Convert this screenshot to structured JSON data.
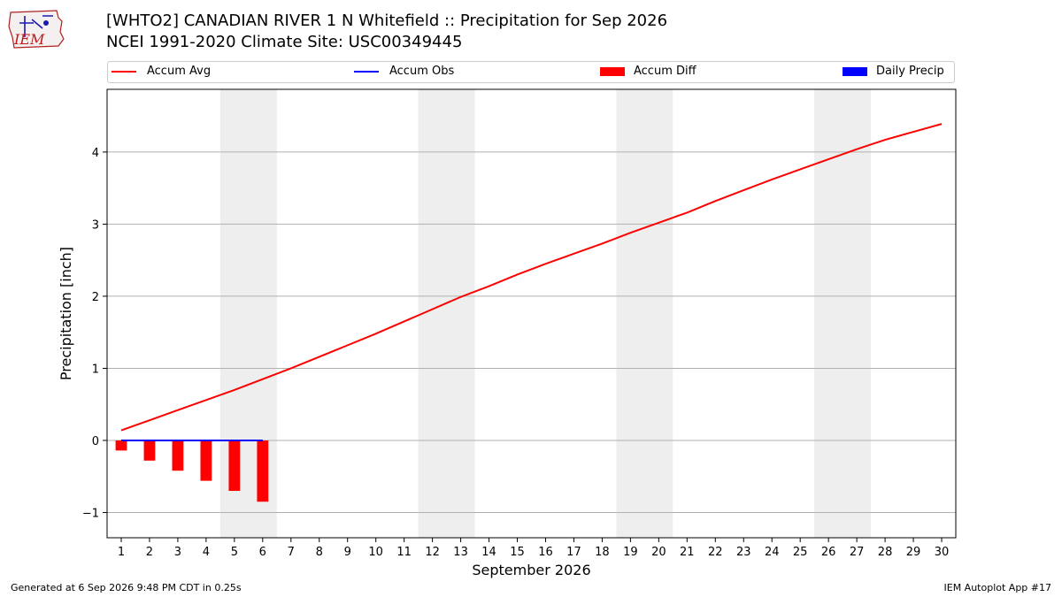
{
  "header": {
    "logo_text": "IEM",
    "title_line1": "[WHTO2] CANADIAN RIVER 1 N Whitefield :: Precipitation for Sep 2026",
    "title_line2": "NCEI 1991-2020 Climate Site: USC00349445"
  },
  "legend": [
    {
      "label": "Accum Avg",
      "kind": "line",
      "color": "#ff0000"
    },
    {
      "label": "Accum Obs",
      "kind": "line",
      "color": "#0000ff"
    },
    {
      "label": "Accum Diff",
      "kind": "box",
      "color": "#ff0000"
    },
    {
      "label": "Daily Precip",
      "kind": "box",
      "color": "#0000ff"
    }
  ],
  "footer": {
    "generated": "Generated at 6 Sep 2026 9:48 PM CDT in 0.25s",
    "app": "IEM Autoplot App #17"
  },
  "chart_data": {
    "type": "line",
    "xlabel": "September 2026",
    "ylabel": "Precipitation [inch]",
    "xlim": [
      0.5,
      30.5
    ],
    "ylim": [
      -1.35,
      4.87
    ],
    "y_ticks": [
      -1,
      0,
      1,
      2,
      3,
      4
    ],
    "y_tick_labels": [
      "−1",
      "0",
      "1",
      "2",
      "3",
      "4"
    ],
    "x_ticks": [
      1,
      2,
      3,
      4,
      5,
      6,
      7,
      8,
      9,
      10,
      11,
      12,
      13,
      14,
      15,
      16,
      17,
      18,
      19,
      20,
      21,
      22,
      23,
      24,
      25,
      26,
      27,
      28,
      29,
      30
    ],
    "grid": "horizontal",
    "weekend_bands": [
      [
        4.5,
        6.5
      ],
      [
        11.5,
        13.5
      ],
      [
        18.5,
        20.5
      ],
      [
        25.5,
        27.5
      ]
    ],
    "accum_avg": {
      "name": "Accum Avg",
      "color": "#ff0000",
      "x": [
        1,
        2,
        3,
        4,
        5,
        6,
        7,
        8,
        9,
        10,
        11,
        12,
        13,
        14,
        15,
        16,
        17,
        18,
        19,
        20,
        21,
        22,
        23,
        24,
        25,
        26,
        27,
        28,
        29,
        30
      ],
      "y": [
        0.14,
        0.28,
        0.42,
        0.56,
        0.7,
        0.85,
        1.0,
        1.16,
        1.32,
        1.48,
        1.65,
        1.82,
        1.99,
        2.14,
        2.3,
        2.45,
        2.59,
        2.73,
        2.88,
        3.02,
        3.16,
        3.32,
        3.47,
        3.62,
        3.76,
        3.9,
        4.04,
        4.17,
        4.28,
        4.39
      ]
    },
    "accum_obs": {
      "name": "Accum Obs",
      "color": "#0000ff",
      "x": [
        1,
        2,
        3,
        4,
        5,
        6
      ],
      "y": [
        0,
        0,
        0,
        0,
        0,
        0
      ]
    },
    "accum_diff": {
      "name": "Accum Diff",
      "color": "#ff0000",
      "x": [
        1,
        2,
        3,
        4,
        5,
        6
      ],
      "y": [
        -0.14,
        -0.28,
        -0.42,
        -0.56,
        -0.7,
        -0.85
      ]
    },
    "daily_precip": {
      "name": "Daily Precip",
      "color": "#0000ff",
      "x": [
        1,
        2,
        3,
        4,
        5,
        6
      ],
      "y": [
        0,
        0,
        0,
        0,
        0,
        0
      ]
    }
  }
}
